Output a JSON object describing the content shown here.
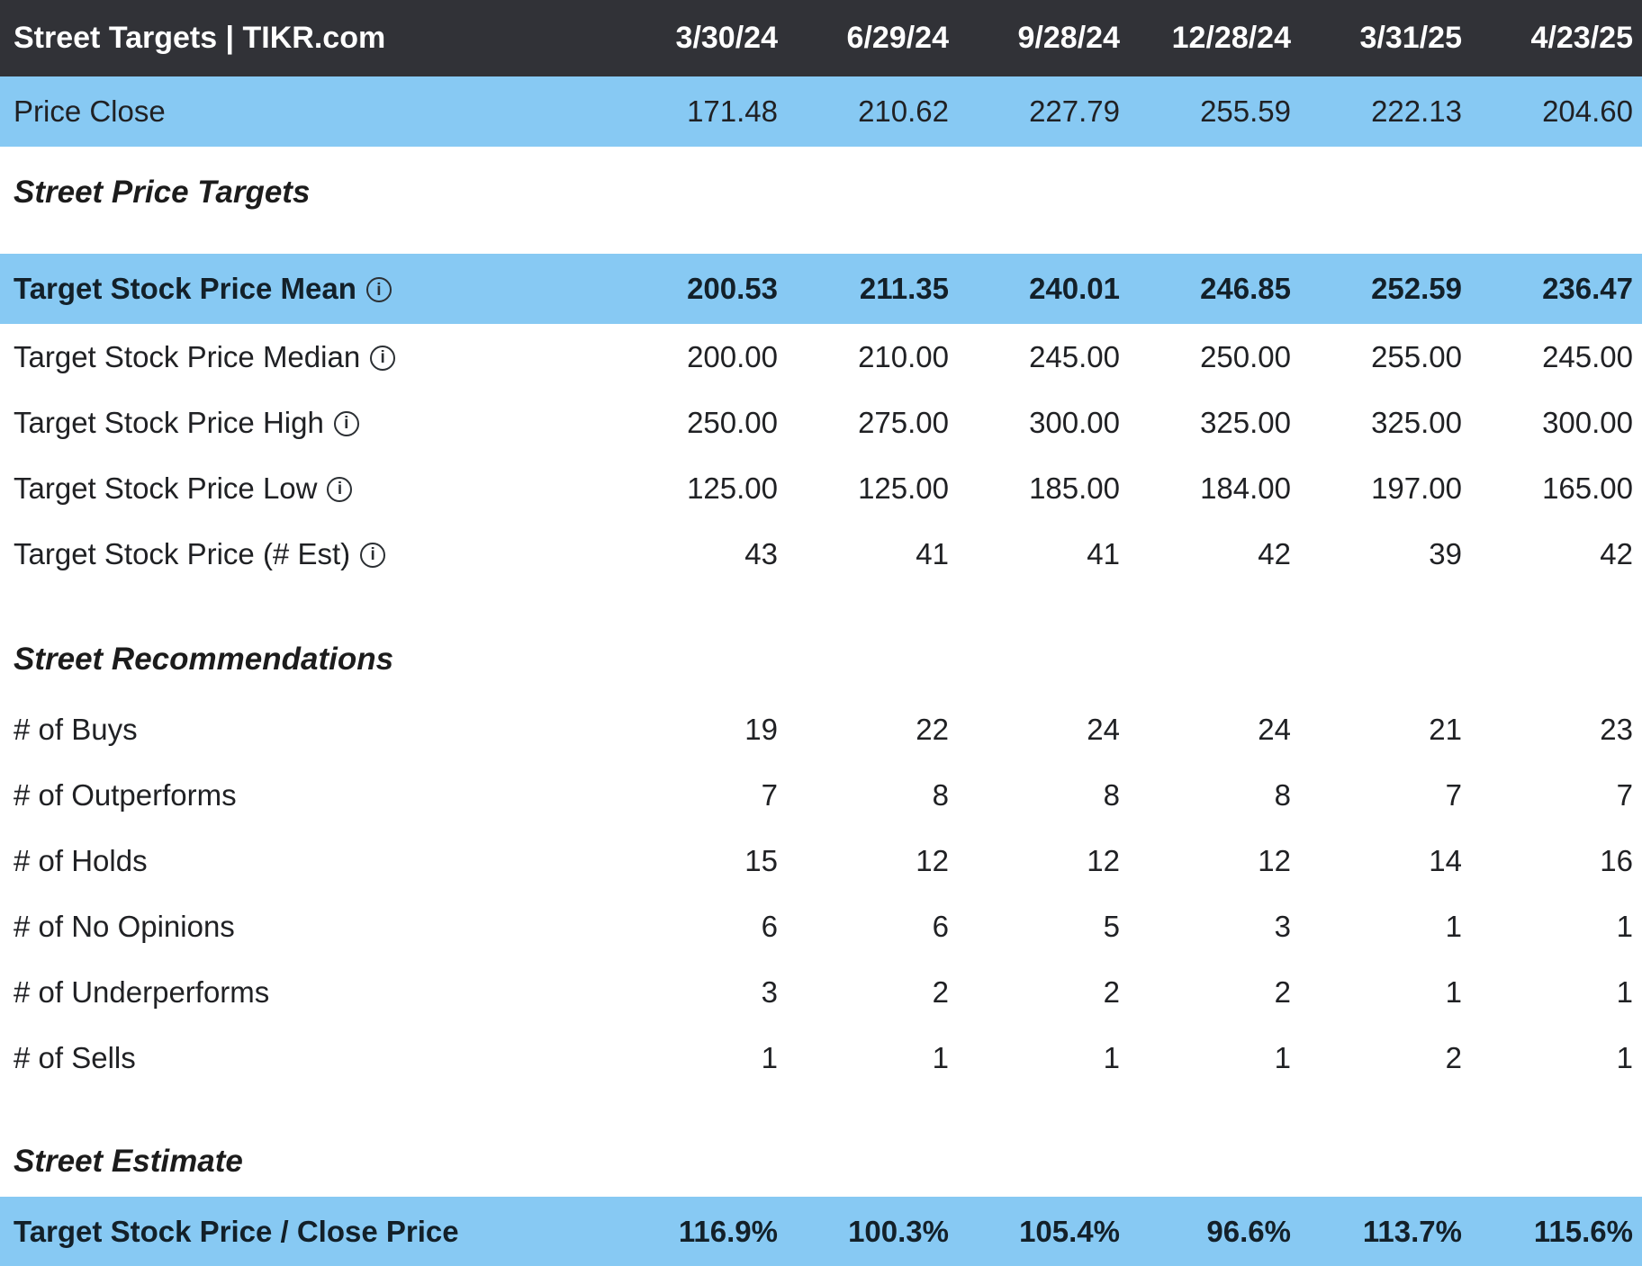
{
  "chart_data": {
    "type": "table",
    "title": "Street Targets | TIKR.com",
    "columns": [
      "3/30/24",
      "6/29/24",
      "9/28/24",
      "12/28/24",
      "3/31/25",
      "4/23/25"
    ],
    "price_close": {
      "label": "Price Close",
      "values": [
        "171.48",
        "210.62",
        "227.79",
        "255.59",
        "222.13",
        "204.60"
      ]
    },
    "sections": [
      {
        "title": "Street Price Targets",
        "rows": [
          {
            "label": "Target Stock Price Mean",
            "info": true,
            "highlight": true,
            "values": [
              "200.53",
              "211.35",
              "240.01",
              "246.85",
              "252.59",
              "236.47"
            ]
          },
          {
            "label": "Target Stock Price Median",
            "info": true,
            "values": [
              "200.00",
              "210.00",
              "245.00",
              "250.00",
              "255.00",
              "245.00"
            ]
          },
          {
            "label": "Target Stock Price High",
            "info": true,
            "values": [
              "250.00",
              "275.00",
              "300.00",
              "325.00",
              "325.00",
              "300.00"
            ]
          },
          {
            "label": "Target Stock Price Low",
            "info": true,
            "values": [
              "125.00",
              "125.00",
              "185.00",
              "184.00",
              "197.00",
              "165.00"
            ]
          },
          {
            "label": "Target Stock Price (# Est)",
            "info": true,
            "values": [
              "43",
              "41",
              "41",
              "42",
              "39",
              "42"
            ]
          }
        ]
      },
      {
        "title": "Street Recommendations",
        "rows": [
          {
            "label": "# of Buys",
            "values": [
              "19",
              "22",
              "24",
              "24",
              "21",
              "23"
            ]
          },
          {
            "label": "# of Outperforms",
            "values": [
              "7",
              "8",
              "8",
              "8",
              "7",
              "7"
            ]
          },
          {
            "label": "# of Holds",
            "values": [
              "15",
              "12",
              "12",
              "12",
              "14",
              "16"
            ]
          },
          {
            "label": "# of No Opinions",
            "values": [
              "6",
              "6",
              "5",
              "3",
              "1",
              "1"
            ]
          },
          {
            "label": "# of Underperforms",
            "values": [
              "3",
              "2",
              "2",
              "2",
              "1",
              "1"
            ]
          },
          {
            "label": "# of Sells",
            "values": [
              "1",
              "1",
              "1",
              "1",
              "2",
              "1"
            ]
          }
        ]
      },
      {
        "title": "Street Estimate",
        "rows": [
          {
            "label": "Target Stock Price / Close Price",
            "highlight": true,
            "values": [
              "116.9%",
              "100.3%",
              "105.4%",
              "96.6%",
              "113.7%",
              "115.6%"
            ]
          }
        ]
      }
    ]
  },
  "icons": {
    "info_glyph": "i"
  },
  "colors": {
    "header_bg": "#313237",
    "header_text": "#ffffff",
    "highlight_bg": "#87c9f3",
    "body_text": "#202124",
    "bold_text": "#132029"
  }
}
